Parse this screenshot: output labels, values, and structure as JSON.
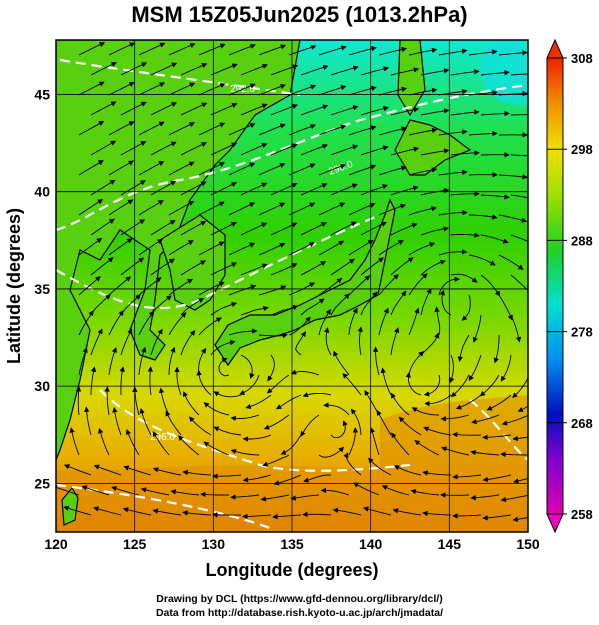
{
  "title": "MSM 15Z05Jun2025 (1013.2hPa)",
  "map": {
    "x_axis": {
      "label": "Longitude (degrees)",
      "min": 120,
      "max": 150,
      "ticks": [
        120,
        125,
        130,
        135,
        140,
        145,
        150
      ]
    },
    "y_axis": {
      "label": "Latitude  (degrees)",
      "min": 22.5,
      "max": 47.8,
      "ticks": [
        25,
        30,
        35,
        40,
        45
      ]
    },
    "field": "temperature (K) shaded with streamlines; white dashed isotherm contours",
    "contour_labels": [
      "292.0",
      "290.0",
      "296.0"
    ],
    "colorbar": {
      "min": 258,
      "max": 308,
      "ticks": [
        258,
        268,
        278,
        288,
        298,
        308
      ]
    }
  },
  "credits": {
    "line1": "Drawing by DCL (https://www.gfd-dennou.org/library/dcl/)",
    "line2": "Data from http://database.rish.kyoto-u.ac.jp/arch/jmadata/"
  },
  "colors": {
    "cold": "#00d8e8",
    "mid": "#30d000",
    "warm": "#e08000",
    "land_outline": "#000000",
    "contour": "#ffffff"
  }
}
